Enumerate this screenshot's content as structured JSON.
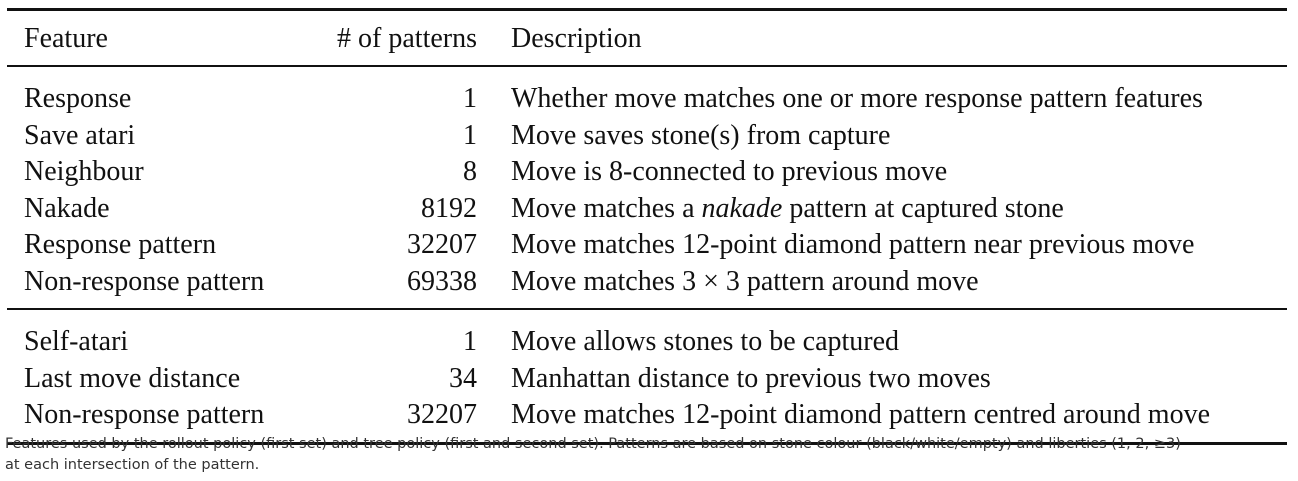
{
  "table": {
    "headers": [
      "Feature",
      "# of patterns",
      "Description"
    ],
    "groups": [
      {
        "rows": [
          {
            "feature": "Response",
            "count": "1",
            "description": [
              "Whether move matches one or more response pattern features"
            ]
          },
          {
            "feature": "Save atari",
            "count": "1",
            "description": [
              "Move saves stone(s) from capture"
            ]
          },
          {
            "feature": "Neighbour",
            "count": "8",
            "description": [
              "Move is 8-connected to previous move"
            ]
          },
          {
            "feature": "Nakade",
            "count": "8192",
            "description": [
              "Move matches a ",
              "nakade",
              " pattern at captured stone"
            ]
          },
          {
            "feature": "Response pattern",
            "count": "32207",
            "description": [
              "Move matches 12-point diamond pattern near previous move"
            ]
          },
          {
            "feature": "Non-response pattern",
            "count": "69338",
            "description": [
              "Move matches 3 × 3 pattern around move"
            ]
          }
        ]
      },
      {
        "rows": [
          {
            "feature": "Self-atari",
            "count": "1",
            "description": [
              "Move allows stones to be captured"
            ]
          },
          {
            "feature": "Last move distance",
            "count": "34",
            "description": [
              "Manhattan distance to previous two moves"
            ]
          },
          {
            "feature": "Non-response pattern",
            "count": "32207",
            "description": [
              "Move matches 12-point diamond pattern centred around move"
            ]
          }
        ]
      }
    ]
  },
  "caption": {
    "line1": "Features used by the rollout policy (first set) and tree policy (first and second set). Patterns are based on stone colour (black/white/empty) and liberties (1, 2, ≥3)",
    "line2": "at each intersection of the pattern."
  }
}
